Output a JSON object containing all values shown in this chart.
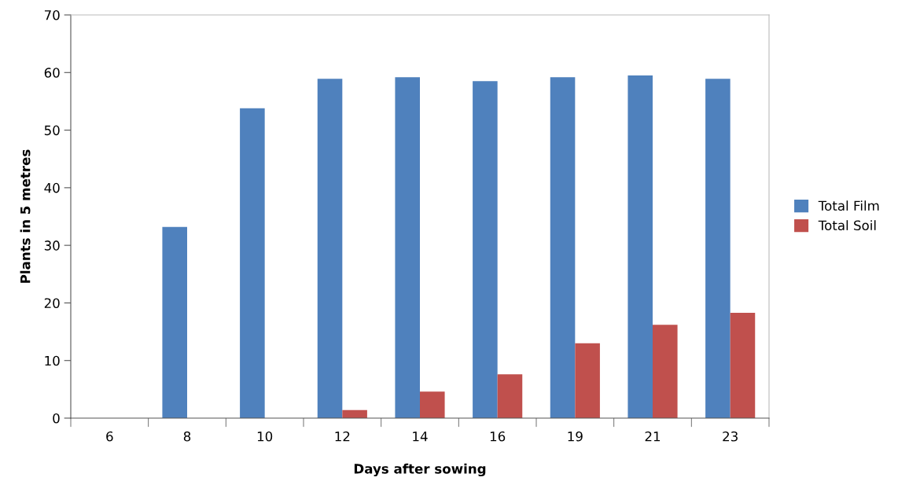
{
  "chart_data": {
    "type": "bar",
    "xlabel": "Days after sowing",
    "ylabel": "Plants in 5 metres",
    "categories": [
      "6",
      "8",
      "10",
      "12",
      "14",
      "16",
      "19",
      "21",
      "23"
    ],
    "series": [
      {
        "name": "Total Film",
        "color": "#4f81bd",
        "values": [
          0,
          33.2,
          53.8,
          58.9,
          59.2,
          58.5,
          59.2,
          59.5,
          58.9
        ]
      },
      {
        "name": "Total Soil",
        "color": "#c0504d",
        "values": [
          0,
          0,
          0,
          1.4,
          4.6,
          7.6,
          13.0,
          16.2,
          18.3
        ]
      }
    ],
    "ylim": [
      0,
      70
    ],
    "yticks": [
      0,
      10,
      20,
      30,
      40,
      50,
      60,
      70
    ],
    "grid": false,
    "legend": "right"
  }
}
